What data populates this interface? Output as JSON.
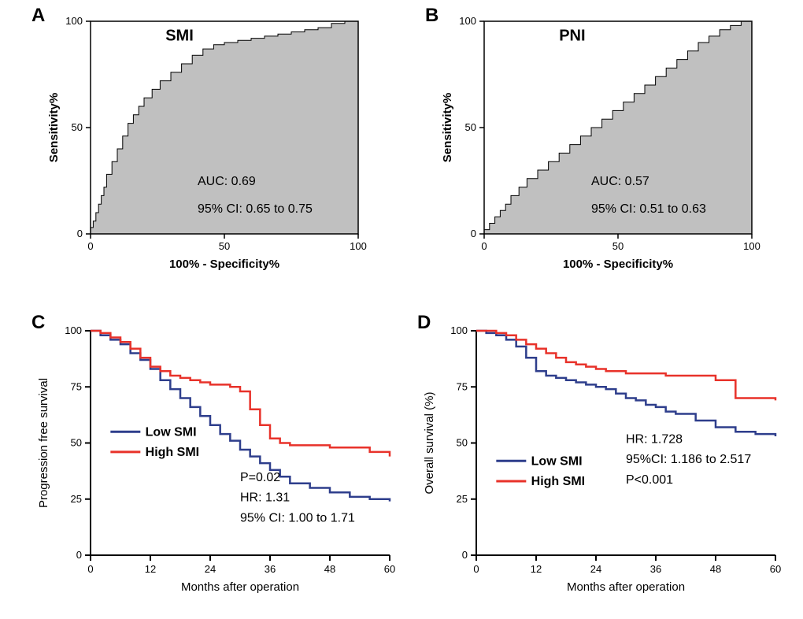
{
  "background_color": "#ffffff",
  "axis_color": "#000000",
  "tick_color": "#000000",
  "panel_label_fontsize": 24,
  "axis_label_fontsize": 15,
  "tick_fontsize": 13,
  "annotation_fontsize": 16,
  "legend_fontsize": 16,
  "panelA": {
    "label": "A",
    "title": "SMI",
    "type": "roc",
    "xlabel": "100% - Specificity%",
    "ylabel": "Sensitivity%",
    "xlim": [
      0,
      100
    ],
    "ylim": [
      0,
      100
    ],
    "tick_step": 50,
    "area_fill": "#c0c0c0",
    "line_color": "#000000",
    "auc_text": "AUC: 0.69",
    "ci_text": "95% CI: 0.65 to 0.75",
    "curve": [
      [
        0,
        0
      ],
      [
        1,
        3
      ],
      [
        2,
        6
      ],
      [
        3,
        10
      ],
      [
        4,
        14
      ],
      [
        5,
        18
      ],
      [
        6,
        22
      ],
      [
        8,
        28
      ],
      [
        10,
        34
      ],
      [
        12,
        40
      ],
      [
        14,
        46
      ],
      [
        16,
        52
      ],
      [
        18,
        56
      ],
      [
        20,
        60
      ],
      [
        23,
        64
      ],
      [
        26,
        68
      ],
      [
        30,
        72
      ],
      [
        34,
        76
      ],
      [
        38,
        80
      ],
      [
        42,
        84
      ],
      [
        46,
        87
      ],
      [
        50,
        89
      ],
      [
        55,
        90
      ],
      [
        60,
        91
      ],
      [
        65,
        92
      ],
      [
        70,
        93
      ],
      [
        75,
        94
      ],
      [
        80,
        95
      ],
      [
        85,
        96
      ],
      [
        90,
        97
      ],
      [
        95,
        99
      ],
      [
        100,
        100
      ]
    ]
  },
  "panelB": {
    "label": "B",
    "title": "PNI",
    "type": "roc",
    "xlabel": "100% - Specificity%",
    "ylabel": "Sensitivity%",
    "xlim": [
      0,
      100
    ],
    "ylim": [
      0,
      100
    ],
    "tick_step": 50,
    "area_fill": "#c0c0c0",
    "line_color": "#000000",
    "auc_text": "AUC: 0.57",
    "ci_text": "95% CI: 0.51 to 0.63",
    "curve": [
      [
        0,
        0
      ],
      [
        2,
        2
      ],
      [
        4,
        5
      ],
      [
        6,
        8
      ],
      [
        8,
        11
      ],
      [
        10,
        14
      ],
      [
        13,
        18
      ],
      [
        16,
        22
      ],
      [
        20,
        26
      ],
      [
        24,
        30
      ],
      [
        28,
        34
      ],
      [
        32,
        38
      ],
      [
        36,
        42
      ],
      [
        40,
        46
      ],
      [
        44,
        50
      ],
      [
        48,
        54
      ],
      [
        52,
        58
      ],
      [
        56,
        62
      ],
      [
        60,
        66
      ],
      [
        64,
        70
      ],
      [
        68,
        74
      ],
      [
        72,
        78
      ],
      [
        76,
        82
      ],
      [
        80,
        86
      ],
      [
        84,
        90
      ],
      [
        88,
        93
      ],
      [
        92,
        96
      ],
      [
        96,
        98
      ],
      [
        100,
        100
      ]
    ]
  },
  "panelC": {
    "label": "C",
    "type": "survival",
    "xlabel": "Months after operation",
    "ylabel": "Progression free survival",
    "xlim": [
      0,
      60
    ],
    "ylim": [
      0,
      100
    ],
    "xtick_step": 12,
    "ytick_step": 25,
    "low_color": "#2e3e8c",
    "high_color": "#e8322a",
    "legend": {
      "low": "Low SMI",
      "high": "High SMI"
    },
    "stats": [
      "P=0.02",
      "HR: 1.31",
      "95% CI: 1.00 to 1.71"
    ],
    "low_curve": [
      [
        0,
        100
      ],
      [
        2,
        98
      ],
      [
        4,
        96
      ],
      [
        6,
        94
      ],
      [
        8,
        90
      ],
      [
        10,
        87
      ],
      [
        12,
        83
      ],
      [
        14,
        78
      ],
      [
        16,
        74
      ],
      [
        18,
        70
      ],
      [
        20,
        66
      ],
      [
        22,
        62
      ],
      [
        24,
        58
      ],
      [
        26,
        54
      ],
      [
        28,
        51
      ],
      [
        30,
        47
      ],
      [
        32,
        44
      ],
      [
        34,
        41
      ],
      [
        36,
        38
      ],
      [
        38,
        35
      ],
      [
        40,
        32
      ],
      [
        44,
        30
      ],
      [
        48,
        28
      ],
      [
        52,
        26
      ],
      [
        56,
        25
      ],
      [
        60,
        24
      ]
    ],
    "high_curve": [
      [
        0,
        100
      ],
      [
        2,
        99
      ],
      [
        4,
        97
      ],
      [
        6,
        95
      ],
      [
        8,
        92
      ],
      [
        10,
        88
      ],
      [
        12,
        84
      ],
      [
        14,
        82
      ],
      [
        16,
        80
      ],
      [
        18,
        79
      ],
      [
        20,
        78
      ],
      [
        22,
        77
      ],
      [
        24,
        76
      ],
      [
        26,
        76
      ],
      [
        28,
        75
      ],
      [
        30,
        73
      ],
      [
        32,
        65
      ],
      [
        34,
        58
      ],
      [
        36,
        52
      ],
      [
        38,
        50
      ],
      [
        40,
        49
      ],
      [
        44,
        49
      ],
      [
        48,
        48
      ],
      [
        54,
        48
      ],
      [
        56,
        46
      ],
      [
        60,
        44
      ]
    ]
  },
  "panelD": {
    "label": "D",
    "type": "survival",
    "xlabel": "Months after operation",
    "ylabel": "Overall survival (%)",
    "xlim": [
      0,
      60
    ],
    "ylim": [
      0,
      100
    ],
    "xtick_step": 12,
    "ytick_step": 25,
    "low_color": "#2e3e8c",
    "high_color": "#e8322a",
    "legend": {
      "low": "Low SMI",
      "high": "High SMI"
    },
    "stats": [
      "HR: 1.728",
      "95%CI: 1.186 to 2.517",
      "P<0.001"
    ],
    "low_curve": [
      [
        0,
        100
      ],
      [
        2,
        99
      ],
      [
        4,
        98
      ],
      [
        6,
        96
      ],
      [
        8,
        93
      ],
      [
        10,
        88
      ],
      [
        12,
        82
      ],
      [
        14,
        80
      ],
      [
        16,
        79
      ],
      [
        18,
        78
      ],
      [
        20,
        77
      ],
      [
        22,
        76
      ],
      [
        24,
        75
      ],
      [
        26,
        74
      ],
      [
        28,
        72
      ],
      [
        30,
        70
      ],
      [
        32,
        69
      ],
      [
        34,
        67
      ],
      [
        36,
        66
      ],
      [
        38,
        64
      ],
      [
        40,
        63
      ],
      [
        44,
        60
      ],
      [
        48,
        57
      ],
      [
        52,
        55
      ],
      [
        56,
        54
      ],
      [
        60,
        53
      ]
    ],
    "high_curve": [
      [
        0,
        100
      ],
      [
        2,
        100
      ],
      [
        4,
        99
      ],
      [
        6,
        98
      ],
      [
        8,
        96
      ],
      [
        10,
        94
      ],
      [
        12,
        92
      ],
      [
        14,
        90
      ],
      [
        16,
        88
      ],
      [
        18,
        86
      ],
      [
        20,
        85
      ],
      [
        22,
        84
      ],
      [
        24,
        83
      ],
      [
        26,
        82
      ],
      [
        28,
        82
      ],
      [
        30,
        81
      ],
      [
        32,
        81
      ],
      [
        34,
        81
      ],
      [
        36,
        81
      ],
      [
        38,
        80
      ],
      [
        40,
        80
      ],
      [
        44,
        80
      ],
      [
        48,
        78
      ],
      [
        52,
        70
      ],
      [
        56,
        70
      ],
      [
        60,
        69
      ]
    ]
  }
}
